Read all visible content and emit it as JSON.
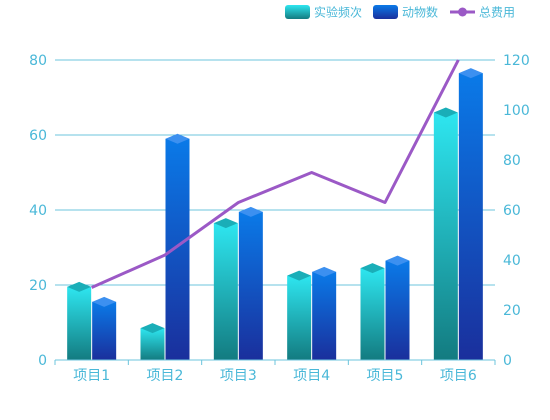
{
  "chart_data": {
    "type": "bar",
    "categories": [
      "项目1",
      "项目2",
      "项目3",
      "项目4",
      "项目5",
      "项目6"
    ],
    "series": [
      {
        "name": "实验频次",
        "type": "bar",
        "axis": "left",
        "values": [
          19.5,
          8.5,
          36.5,
          22.5,
          24.5,
          66
        ]
      },
      {
        "name": "动物数",
        "type": "bar",
        "axis": "left",
        "values": [
          15.5,
          59,
          39.5,
          23.5,
          26.5,
          76.5
        ]
      },
      {
        "name": "总费用",
        "type": "line",
        "axis": "right",
        "values": [
          29,
          42,
          63,
          75,
          63,
          120
        ]
      }
    ],
    "y_left": {
      "min": 0,
      "max": 80,
      "ticks": [
        "0",
        "20",
        "40",
        "60",
        "80"
      ]
    },
    "y_right": {
      "min": 0,
      "max": 120,
      "ticks": [
        "0",
        "20",
        "40",
        "60",
        "80",
        "100",
        "120"
      ]
    },
    "legend_position": "top-right",
    "grid": true,
    "colors": {
      "axis_text": "#4ab8d8",
      "grid": "#6cc4dd",
      "bar1_top": "#2ee6f0",
      "bar1_bottom": "#137b80",
      "bar1_cap": "#1aaeb8",
      "bar2_top": "#0a7ae8",
      "bar2_bottom": "#1a2f9c",
      "bar2_cap": "#3c90f0",
      "line": "#9b59c6"
    }
  }
}
